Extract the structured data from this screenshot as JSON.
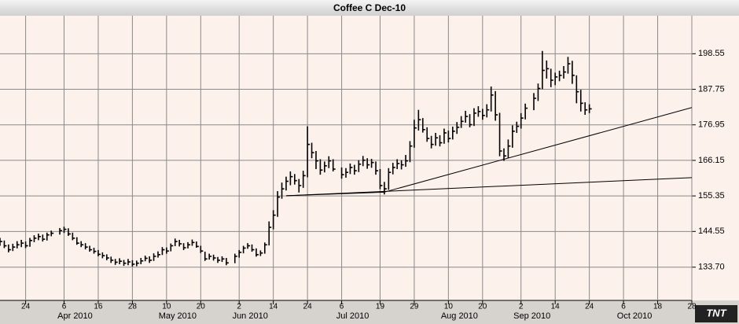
{
  "chart_data": {
    "type": "hlc",
    "title": "Coffee C Dec-10",
    "x": [
      "2010-03-16",
      "2010-03-17",
      "2010-03-18",
      "2010-03-19",
      "2010-03-22",
      "2010-03-23",
      "2010-03-24",
      "2010-03-25",
      "2010-03-26",
      "2010-03-29",
      "2010-03-30",
      "2010-03-31",
      "2010-04-01",
      "2010-04-05",
      "2010-04-06",
      "2010-04-07",
      "2010-04-08",
      "2010-04-09",
      "2010-04-12",
      "2010-04-13",
      "2010-04-14",
      "2010-04-15",
      "2010-04-16",
      "2010-04-19",
      "2010-04-20",
      "2010-04-21",
      "2010-04-22",
      "2010-04-23",
      "2010-04-26",
      "2010-04-27",
      "2010-04-28",
      "2010-04-29",
      "2010-04-30",
      "2010-05-03",
      "2010-05-04",
      "2010-05-05",
      "2010-05-06",
      "2010-05-07",
      "2010-05-10",
      "2010-05-11",
      "2010-05-12",
      "2010-05-13",
      "2010-05-14",
      "2010-05-17",
      "2010-05-18",
      "2010-05-19",
      "2010-05-20",
      "2010-05-21",
      "2010-05-24",
      "2010-05-25",
      "2010-05-26",
      "2010-05-27",
      "2010-05-28",
      "2010-06-01",
      "2010-06-02",
      "2010-06-03",
      "2010-06-04",
      "2010-06-07",
      "2010-06-08",
      "2010-06-09",
      "2010-06-10",
      "2010-06-11",
      "2010-06-14",
      "2010-06-15",
      "2010-06-16",
      "2010-06-17",
      "2010-06-18",
      "2010-06-21",
      "2010-06-22",
      "2010-06-23",
      "2010-06-24",
      "2010-06-25",
      "2010-06-28",
      "2010-06-29",
      "2010-06-30",
      "2010-07-01",
      "2010-07-02",
      "2010-07-06",
      "2010-07-07",
      "2010-07-08",
      "2010-07-09",
      "2010-07-12",
      "2010-07-13",
      "2010-07-14",
      "2010-07-15",
      "2010-07-16",
      "2010-07-19",
      "2010-07-20",
      "2010-07-21",
      "2010-07-22",
      "2010-07-23",
      "2010-07-26",
      "2010-07-27",
      "2010-07-28",
      "2010-07-29",
      "2010-07-30",
      "2010-08-02",
      "2010-08-03",
      "2010-08-04",
      "2010-08-05",
      "2010-08-06",
      "2010-08-09",
      "2010-08-10",
      "2010-08-11",
      "2010-08-12",
      "2010-08-13",
      "2010-08-16",
      "2010-08-17",
      "2010-08-18",
      "2010-08-19",
      "2010-08-20",
      "2010-08-23",
      "2010-08-24",
      "2010-08-25",
      "2010-08-26",
      "2010-08-27",
      "2010-08-30",
      "2010-08-31",
      "2010-09-01",
      "2010-09-02",
      "2010-09-03",
      "2010-09-07",
      "2010-09-08",
      "2010-09-09",
      "2010-09-10",
      "2010-09-13",
      "2010-09-14",
      "2010-09-15",
      "2010-09-16",
      "2010-09-17",
      "2010-09-20",
      "2010-09-21",
      "2010-09-22",
      "2010-09-23",
      "2010-09-24"
    ],
    "high": [
      142.6,
      141.8,
      140.6,
      140.8,
      141.6,
      142.0,
      141.5,
      142.6,
      143.4,
      143.9,
      143.6,
      144.2,
      144.8,
      145.6,
      146.0,
      145.5,
      144.2,
      142.8,
      141.6,
      141.0,
      140.2,
      139.6,
      138.9,
      138.2,
      137.6,
      136.9,
      136.2,
      136.4,
      135.9,
      136.2,
      135.8,
      135.7,
      136.5,
      137.2,
      137.0,
      137.9,
      138.5,
      139.8,
      139.7,
      140.9,
      142.4,
      142.0,
      141.0,
      141.3,
      142.1,
      141.5,
      140.2,
      138.4,
      137.8,
      137.5,
      136.8,
      137.0,
      136.5,
      137.8,
      138.9,
      140.2,
      141.0,
      140.6,
      139.4,
      138.8,
      141.2,
      147.6,
      151.0,
      156.8,
      159.4,
      161.2,
      162.8,
      162.0,
      160.5,
      163.0,
      176.5,
      171.5,
      169.0,
      166.5,
      165.8,
      167.4,
      166.5,
      164.0,
      163.8,
      165.2,
      164.8,
      166.2,
      167.5,
      166.8,
      166.6,
      165.8,
      163.5,
      159.6,
      163.8,
      165.4,
      166.5,
      166.2,
      167.8,
      172.0,
      178.5,
      181.5,
      179.0,
      176.2,
      173.6,
      174.5,
      173.8,
      175.8,
      175.2,
      176.4,
      177.8,
      179.6,
      181.2,
      180.2,
      182.0,
      182.6,
      181.8,
      183.2,
      188.6,
      187.2,
      180.6,
      169.8,
      172.5,
      176.8,
      177.9,
      180.5,
      183.4,
      186.6,
      189.5,
      199.4,
      196.5,
      194.0,
      192.8,
      193.4,
      194.8,
      197.6,
      196.4,
      192.0,
      187.6,
      183.8,
      183.2
    ],
    "low": [
      140.2,
      139.5,
      138.2,
      138.6,
      139.4,
      139.8,
      139.5,
      139.9,
      141.3,
      141.9,
      141.5,
      141.8,
      143.1,
      143.6,
      144.1,
      143.2,
      141.9,
      140.5,
      139.8,
      139.1,
      138.4,
      137.8,
      137.0,
      136.4,
      135.8,
      135.0,
      134.4,
      134.6,
      134.1,
      134.3,
      133.9,
      134.0,
      134.6,
      135.5,
      135.0,
      135.6,
      136.6,
      137.4,
      137.8,
      138.5,
      140.1,
      140.0,
      138.9,
      139.4,
      140.2,
      139.6,
      138.0,
      135.6,
      136.0,
      135.7,
      135.0,
      135.3,
      134.3,
      134.9,
      136.6,
      137.9,
      139.3,
      138.4,
      136.9,
      137.1,
      137.8,
      140.3,
      145.2,
      149.0,
      154.5,
      157.0,
      158.6,
      158.8,
      156.4,
      157.8,
      161.0,
      166.8,
      163.5,
      161.8,
      162.5,
      163.8,
      162.8,
      160.6,
      160.9,
      162.0,
      161.8,
      162.6,
      164.4,
      163.6,
      163.9,
      161.8,
      157.4,
      155.8,
      157.2,
      161.9,
      163.5,
      163.4,
      164.2,
      165.6,
      170.0,
      175.2,
      174.6,
      171.8,
      169.8,
      170.6,
      170.4,
      171.2,
      171.6,
      172.5,
      174.2,
      176.0,
      177.6,
      176.2,
      176.6,
      179.4,
      178.5,
      179.2,
      181.0,
      178.2,
      167.4,
      166.0,
      166.8,
      170.0,
      174.5,
      175.8,
      178.6,
      181.4,
      184.2,
      187.8,
      191.0,
      188.4,
      189.0,
      190.2,
      191.0,
      192.5,
      189.4,
      183.5,
      181.0,
      180.0,
      180.5
    ],
    "close": [
      141.5,
      140.2,
      139.0,
      139.8,
      140.5,
      141.0,
      140.2,
      141.8,
      142.5,
      143.0,
      142.2,
      143.5,
      144.0,
      144.8,
      145.2,
      143.8,
      142.5,
      141.0,
      140.5,
      139.8,
      139.0,
      138.5,
      137.6,
      137.2,
      136.5,
      135.8,
      135.2,
      135.5,
      134.9,
      135.3,
      134.6,
      134.9,
      135.6,
      136.4,
      135.8,
      137.0,
      137.5,
      139.0,
      138.6,
      140.2,
      141.5,
      140.8,
      139.6,
      140.5,
      141.2,
      140.0,
      138.6,
      136.2,
      137.0,
      136.5,
      135.8,
      136.2,
      135.0,
      137.0,
      138.2,
      139.5,
      140.2,
      139.0,
      137.5,
      138.0,
      140.5,
      145.8,
      149.5,
      155.0,
      157.5,
      159.8,
      161.2,
      160.0,
      158.5,
      161.5,
      171.0,
      168.5,
      166.0,
      163.2,
      164.5,
      166.0,
      163.5,
      161.8,
      162.5,
      164.0,
      163.0,
      165.0,
      166.2,
      164.8,
      165.5,
      163.0,
      158.5,
      157.5,
      162.5,
      164.0,
      165.2,
      164.8,
      166.0,
      170.5,
      176.0,
      178.5,
      175.5,
      172.8,
      171.0,
      173.0,
      171.5,
      174.5,
      172.8,
      175.0,
      176.2,
      178.0,
      179.5,
      177.0,
      180.5,
      181.0,
      179.8,
      181.5,
      186.0,
      180.0,
      169.0,
      167.5,
      170.5,
      175.0,
      176.5,
      179.0,
      182.0,
      185.0,
      188.0,
      193.5,
      194.0,
      190.5,
      191.5,
      192.0,
      193.0,
      195.5,
      192.0,
      187.0,
      183.5,
      181.5,
      181.8
    ],
    "color": "#000000",
    "trendlines": [
      {
        "x": [
          "2010-06-17",
          "2010-10-28"
        ],
        "y": [
          155.4,
          160.9
        ]
      },
      {
        "x": [
          "2010-06-17",
          "2010-07-20"
        ],
        "y": [
          155.4,
          156.5
        ]
      },
      {
        "x": [
          "2010-07-20",
          "2010-10-28"
        ],
        "y": [
          156.5,
          182.2
        ]
      }
    ],
    "xlim": [
      "2010-03-16",
      "2010-10-28"
    ],
    "xticks": [
      {
        "value": "2010-03-24",
        "label": "24"
      },
      {
        "value": "2010-04-06",
        "label": "6"
      },
      {
        "value": "2010-04-16",
        "label": "16"
      },
      {
        "value": "2010-04-28",
        "label": "28"
      },
      {
        "value": "2010-05-10",
        "label": "10"
      },
      {
        "value": "2010-05-20",
        "label": "20"
      },
      {
        "value": "2010-06-02",
        "label": "2"
      },
      {
        "value": "2010-06-14",
        "label": "14"
      },
      {
        "value": "2010-06-24",
        "label": "24"
      },
      {
        "value": "2010-07-06",
        "label": "6"
      },
      {
        "value": "2010-07-19",
        "label": "19"
      },
      {
        "value": "2010-07-29",
        "label": "29"
      },
      {
        "value": "2010-08-10",
        "label": "10"
      },
      {
        "value": "2010-08-20",
        "label": "20"
      },
      {
        "value": "2010-09-02",
        "label": "2"
      },
      {
        "value": "2010-09-14",
        "label": "14"
      },
      {
        "value": "2010-09-24",
        "label": "24"
      },
      {
        "value": "2010-10-06",
        "label": "6"
      },
      {
        "value": "2010-10-18",
        "label": "18"
      },
      {
        "value": "2010-10-28",
        "label": "28"
      }
    ],
    "month_labels": [
      {
        "value": "2010-04-06",
        "label": "Apr 2010"
      },
      {
        "value": "2010-05-10",
        "label": "May 2010"
      },
      {
        "value": "2010-06-02",
        "label": "Jun 2010"
      },
      {
        "value": "2010-07-06",
        "label": "Jul 2010"
      },
      {
        "value": "2010-08-10",
        "label": "Aug 2010"
      },
      {
        "value": "2010-09-02",
        "label": "Sep 2010"
      },
      {
        "value": "2010-10-06",
        "label": "Oct 2010"
      }
    ],
    "ylim": [
      123.6,
      210.1
    ],
    "yticks": [
      {
        "value": 133.7,
        "label": "133.70"
      },
      144.55,
      155.35,
      166.15,
      176.95,
      187.75,
      198.55
    ],
    "grid": true,
    "logo": "TNT"
  }
}
